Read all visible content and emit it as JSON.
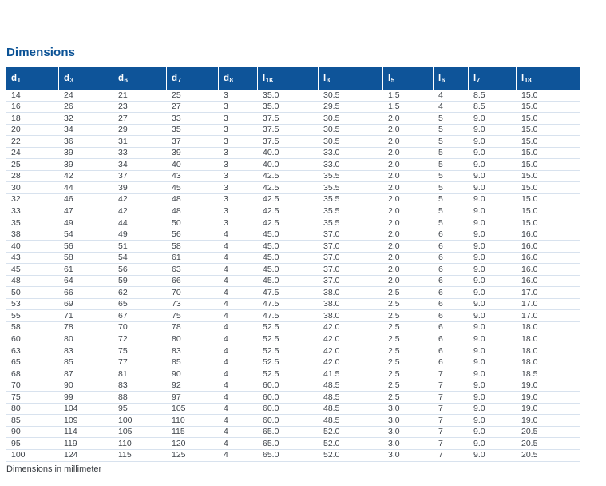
{
  "page": {
    "title": "Dimensions",
    "footnote": "Dimensions in millimeter"
  },
  "table": {
    "columns": [
      {
        "base": "d",
        "sub": "1"
      },
      {
        "base": "d",
        "sub": "3"
      },
      {
        "base": "d",
        "sub": "6"
      },
      {
        "base": "d",
        "sub": "7"
      },
      {
        "base": "d",
        "sub": "8"
      },
      {
        "base": "l",
        "sub": "1K"
      },
      {
        "base": "l",
        "sub": "3"
      },
      {
        "base": "l",
        "sub": "5"
      },
      {
        "base": "l",
        "sub": "6"
      },
      {
        "base": "l",
        "sub": "7"
      },
      {
        "base": "l",
        "sub": "18"
      }
    ],
    "rows": [
      [
        "14",
        "24",
        "21",
        "25",
        "3",
        "35.0",
        "30.5",
        "1.5",
        "4",
        "8.5",
        "15.0"
      ],
      [
        "16",
        "26",
        "23",
        "27",
        "3",
        "35.0",
        "29.5",
        "1.5",
        "4",
        "8.5",
        "15.0"
      ],
      [
        "18",
        "32",
        "27",
        "33",
        "3",
        "37.5",
        "30.5",
        "2.0",
        "5",
        "9.0",
        "15.0"
      ],
      [
        "20",
        "34",
        "29",
        "35",
        "3",
        "37.5",
        "30.5",
        "2.0",
        "5",
        "9.0",
        "15.0"
      ],
      [
        "22",
        "36",
        "31",
        "37",
        "3",
        "37.5",
        "30.5",
        "2.0",
        "5",
        "9.0",
        "15.0"
      ],
      [
        "24",
        "39",
        "33",
        "39",
        "3",
        "40.0",
        "33.0",
        "2.0",
        "5",
        "9.0",
        "15.0"
      ],
      [
        "25",
        "39",
        "34",
        "40",
        "3",
        "40.0",
        "33.0",
        "2.0",
        "5",
        "9.0",
        "15.0"
      ],
      [
        "28",
        "42",
        "37",
        "43",
        "3",
        "42.5",
        "35.5",
        "2.0",
        "5",
        "9.0",
        "15.0"
      ],
      [
        "30",
        "44",
        "39",
        "45",
        "3",
        "42.5",
        "35.5",
        "2.0",
        "5",
        "9.0",
        "15.0"
      ],
      [
        "32",
        "46",
        "42",
        "48",
        "3",
        "42.5",
        "35.5",
        "2.0",
        "5",
        "9.0",
        "15.0"
      ],
      [
        "33",
        "47",
        "42",
        "48",
        "3",
        "42.5",
        "35.5",
        "2.0",
        "5",
        "9.0",
        "15.0"
      ],
      [
        "35",
        "49",
        "44",
        "50",
        "3",
        "42.5",
        "35.5",
        "2.0",
        "5",
        "9.0",
        "15.0"
      ],
      [
        "38",
        "54",
        "49",
        "56",
        "4",
        "45.0",
        "37.0",
        "2.0",
        "6",
        "9.0",
        "16.0"
      ],
      [
        "40",
        "56",
        "51",
        "58",
        "4",
        "45.0",
        "37.0",
        "2.0",
        "6",
        "9.0",
        "16.0"
      ],
      [
        "43",
        "58",
        "54",
        "61",
        "4",
        "45.0",
        "37.0",
        "2.0",
        "6",
        "9.0",
        "16.0"
      ],
      [
        "45",
        "61",
        "56",
        "63",
        "4",
        "45.0",
        "37.0",
        "2.0",
        "6",
        "9.0",
        "16.0"
      ],
      [
        "48",
        "64",
        "59",
        "66",
        "4",
        "45.0",
        "37.0",
        "2.0",
        "6",
        "9.0",
        "16.0"
      ],
      [
        "50",
        "66",
        "62",
        "70",
        "4",
        "47.5",
        "38.0",
        "2.5",
        "6",
        "9.0",
        "17.0"
      ],
      [
        "53",
        "69",
        "65",
        "73",
        "4",
        "47.5",
        "38.0",
        "2.5",
        "6",
        "9.0",
        "17.0"
      ],
      [
        "55",
        "71",
        "67",
        "75",
        "4",
        "47.5",
        "38.0",
        "2.5",
        "6",
        "9.0",
        "17.0"
      ],
      [
        "58",
        "78",
        "70",
        "78",
        "4",
        "52.5",
        "42.0",
        "2.5",
        "6",
        "9.0",
        "18.0"
      ],
      [
        "60",
        "80",
        "72",
        "80",
        "4",
        "52.5",
        "42.0",
        "2.5",
        "6",
        "9.0",
        "18.0"
      ],
      [
        "63",
        "83",
        "75",
        "83",
        "4",
        "52.5",
        "42.0",
        "2.5",
        "6",
        "9.0",
        "18.0"
      ],
      [
        "65",
        "85",
        "77",
        "85",
        "4",
        "52.5",
        "42.0",
        "2.5",
        "6",
        "9.0",
        "18.0"
      ],
      [
        "68",
        "87",
        "81",
        "90",
        "4",
        "52.5",
        "41.5",
        "2.5",
        "7",
        "9.0",
        "18.5"
      ],
      [
        "70",
        "90",
        "83",
        "92",
        "4",
        "60.0",
        "48.5",
        "2.5",
        "7",
        "9.0",
        "19.0"
      ],
      [
        "75",
        "99",
        "88",
        "97",
        "4",
        "60.0",
        "48.5",
        "2.5",
        "7",
        "9.0",
        "19.0"
      ],
      [
        "80",
        "104",
        "95",
        "105",
        "4",
        "60.0",
        "48.5",
        "3.0",
        "7",
        "9.0",
        "19.0"
      ],
      [
        "85",
        "109",
        "100",
        "110",
        "4",
        "60.0",
        "48.5",
        "3.0",
        "7",
        "9.0",
        "19.0"
      ],
      [
        "90",
        "114",
        "105",
        "115",
        "4",
        "65.0",
        "52.0",
        "3.0",
        "7",
        "9.0",
        "20.5"
      ],
      [
        "95",
        "119",
        "110",
        "120",
        "4",
        "65.0",
        "52.0",
        "3.0",
        "7",
        "9.0",
        "20.5"
      ],
      [
        "100",
        "124",
        "115",
        "125",
        "4",
        "65.0",
        "52.0",
        "3.0",
        "7",
        "9.0",
        "20.5"
      ]
    ]
  },
  "colors": {
    "header_bg": "#0e5499",
    "header_text": "#ffffff",
    "title_text": "#0b5295",
    "body_text": "#3f444b",
    "row_divider": "#d8e2ee",
    "page_bg": "#ffffff"
  }
}
